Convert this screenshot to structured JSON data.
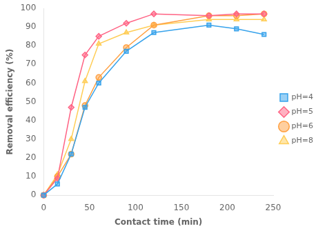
{
  "chart_data": {
    "type": "line",
    "x_label": "Contact time (min)",
    "y_label": "Removal efficiency (%)",
    "x": [
      0,
      15,
      30,
      45,
      60,
      90,
      120,
      180,
      210,
      240
    ],
    "series": [
      {
        "name": "pH=4",
        "marker": "square",
        "values": [
          0,
          6,
          22,
          47,
          60,
          77,
          87,
          91,
          89,
          86
        ]
      },
      {
        "name": "pH=5",
        "marker": "diamond",
        "values": [
          0,
          9,
          47,
          75,
          85,
          92,
          97,
          96,
          97,
          97
        ]
      },
      {
        "name": "pH=6",
        "marker": "circle",
        "values": [
          0,
          10,
          22,
          48,
          63,
          79,
          91,
          96,
          96,
          97
        ]
      },
      {
        "name": "pH=8",
        "marker": "triangle",
        "values": [
          0,
          11,
          30,
          61,
          81,
          87,
          91,
          94,
          94,
          94
        ]
      }
    ],
    "xlim": [
      0,
      250
    ],
    "xticks": [
      0,
      50,
      100,
      150,
      200,
      250
    ],
    "ylim": [
      0,
      100
    ],
    "yticks": [
      0,
      10,
      20,
      30,
      40,
      50,
      60,
      70,
      80,
      90,
      100
    ],
    "grid": false,
    "legend": "right"
  }
}
